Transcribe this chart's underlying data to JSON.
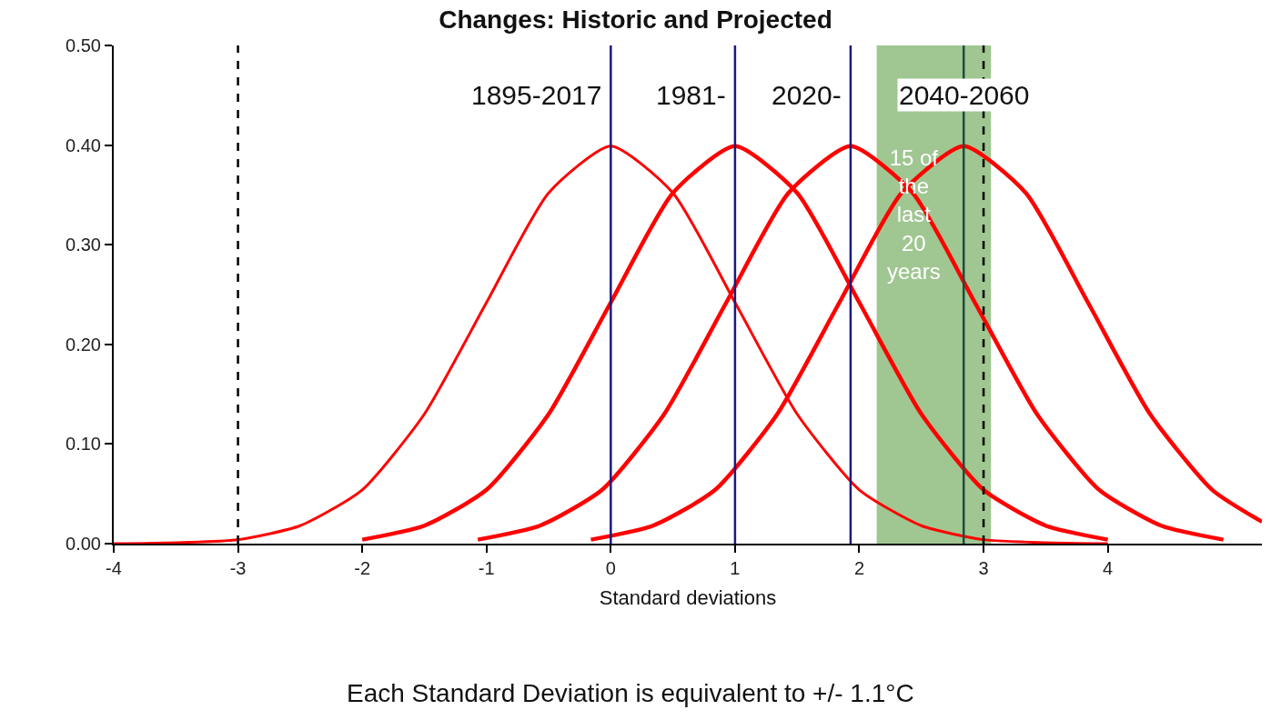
{
  "chart_data": {
    "type": "line",
    "title": "Changes: Historic and Projected",
    "xlabel": "Standard deviations",
    "annotations": [
      {
        "text": "1895-2017",
        "x": 0,
        "y": 0.45
      },
      {
        "text": "1981-",
        "x": 1,
        "y": 0.45
      },
      {
        "text": "2020-",
        "x": 1.93,
        "y": 0.45
      },
      {
        "text": "2040-2060",
        "x": 2.84,
        "y": 0.45
      },
      "Each Standard Deviation is equivalent to +/- 1.1°C"
    ],
    "series": [
      {
        "color": "#ff0000",
        "x": [
          -4,
          -3.5,
          -3,
          -2.5,
          -2,
          -1.5,
          -1,
          -0.5,
          0,
          0.5,
          1,
          1.5,
          2,
          2.5,
          3,
          3.5,
          4
        ],
        "values": [
          0.0,
          0.001,
          0.004,
          0.018,
          0.054,
          0.13,
          0.242,
          0.352,
          0.399,
          0.352,
          0.242,
          0.13,
          0.054,
          0.018,
          0.004,
          0.001,
          0.0
        ]
      },
      {
        "color": "#ff0000",
        "x": [
          -2,
          -1.5,
          -1,
          -0.5,
          0,
          0.5,
          1,
          1.5,
          2,
          2.5,
          3,
          3.5,
          4
        ],
        "values": [
          0.004,
          0.018,
          0.054,
          0.13,
          0.242,
          0.352,
          0.399,
          0.352,
          0.242,
          0.13,
          0.054,
          0.018,
          0.004
        ]
      },
      {
        "color": "#ff0000",
        "x": [
          -1.07,
          -0.57,
          -0.07,
          0.43,
          0.93,
          1.43,
          1.93,
          2.43,
          2.93,
          3.43,
          3.93,
          4.43,
          4.93
        ],
        "values": [
          0.004,
          0.018,
          0.054,
          0.13,
          0.242,
          0.352,
          0.399,
          0.352,
          0.242,
          0.13,
          0.054,
          0.018,
          0.004
        ]
      },
      {
        "color": "#ff0000",
        "x": [
          -0.16,
          0.34,
          0.84,
          1.34,
          1.84,
          2.34,
          2.84,
          3.34,
          3.84,
          4.34,
          4.84,
          5.24
        ],
        "values": [
          0.004,
          0.018,
          0.054,
          0.13,
          0.242,
          0.352,
          0.399,
          0.352,
          0.242,
          0.13,
          0.054,
          0.022
        ]
      }
    ],
    "xlim": [
      -4,
      5.24
    ],
    "xticks": [
      -4,
      -3,
      -2,
      -1,
      0,
      1,
      2,
      3,
      4
    ],
    "ylim": [
      0,
      0.5
    ],
    "yticks": [
      {
        "value": 0,
        "label": "0.00"
      },
      {
        "value": 0.1,
        "label": "0.10"
      },
      {
        "value": 0.2,
        "label": "0.20"
      },
      {
        "value": 0.3,
        "label": "0.30"
      },
      {
        "value": 0.4,
        "label": "0.40"
      },
      {
        "value": 0.5,
        "label": "0.50"
      }
    ],
    "ref_lines": [
      {
        "axis": "x",
        "value": -3,
        "label": null,
        "color": "#000000",
        "line_style": "dashed"
      },
      {
        "axis": "x",
        "value": 0,
        "label": null,
        "color": "#1a1a80",
        "line_style": "solid"
      },
      {
        "axis": "x",
        "value": 1,
        "label": null,
        "color": "#1a1a80",
        "line_style": "solid"
      },
      {
        "axis": "x",
        "value": 1.93,
        "label": null,
        "color": "#1a1a80",
        "line_style": "solid"
      },
      {
        "axis": "x",
        "value": 2.84,
        "label": null,
        "color": "#1f4e3d",
        "line_style": "solid"
      },
      {
        "axis": "x",
        "value": 3,
        "label": null,
        "color": "#000000",
        "line_style": "dashed"
      }
    ],
    "bands": [
      {
        "axis": "x",
        "from": 2.14,
        "to": 3.06,
        "label": "15 of\nthe\nlast\n20\nyears",
        "color": "#8fbc7f"
      }
    ],
    "grid": false,
    "marker": "none",
    "line_style": "solid"
  }
}
